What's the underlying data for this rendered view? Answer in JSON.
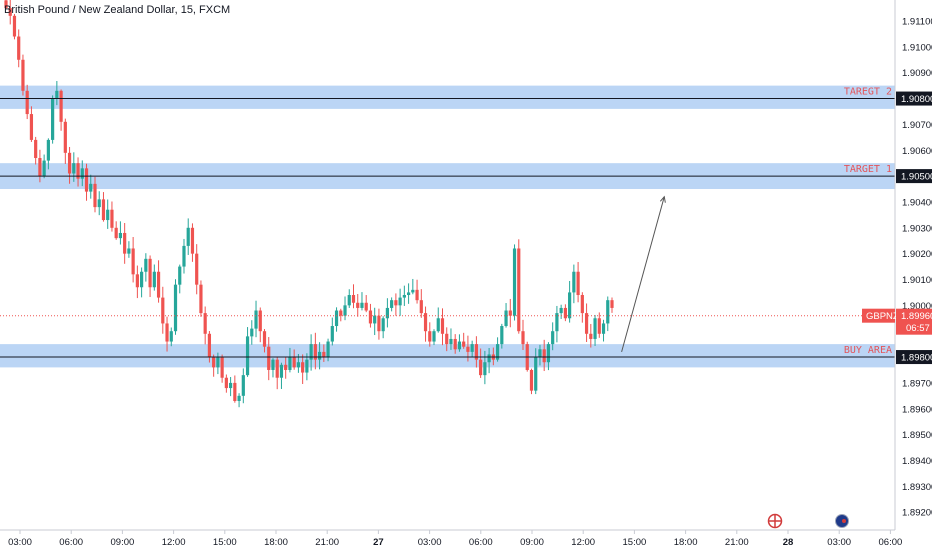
{
  "header": {
    "title": "British Pound / New Zealand Dollar, 15, FXCM"
  },
  "price_tag": {
    "symbol": "GBPNZD",
    "price": "1.89960",
    "countdown": "06:57"
  },
  "colors": {
    "up": "#26a69a",
    "down": "#ef5350",
    "zone": "#bbd5f5",
    "level_line": "#131722",
    "current_price": "#ef5350",
    "zone_text": "#e4555a",
    "arrow": "#555555"
  },
  "chart_data": {
    "type": "candlestick",
    "title": "British Pound / New Zealand Dollar, 15, FXCM",
    "ylim": [
      1.8912,
      1.9118
    ],
    "y_ticks": [
      "1.91100",
      "1.91000",
      "1.90900",
      "1.90800",
      "1.90700",
      "1.90600",
      "1.90500",
      "1.90400",
      "1.90300",
      "1.90200",
      "1.90100",
      "1.90000",
      "1.89900",
      "1.89800",
      "1.89700",
      "1.89600",
      "1.89500",
      "1.89400",
      "1.89300",
      "1.89200"
    ],
    "x_ticks": [
      "03:00",
      "06:00",
      "09:00",
      "12:00",
      "15:00",
      "18:00",
      "21:00",
      "27",
      "03:00",
      "06:00",
      "09:00",
      "12:00",
      "15:00",
      "18:00",
      "21:00",
      "28",
      "03:00",
      "06:00"
    ],
    "levels": [
      {
        "label": "TAREGT 2",
        "price": 1.908,
        "tag": "1.90800",
        "zone": [
          1.9076,
          1.9085
        ]
      },
      {
        "label": "TARGET 1",
        "price": 1.905,
        "tag": "1.90500",
        "zone": [
          1.9045,
          1.9055
        ]
      },
      {
        "label": "BUY AREA",
        "price": 1.898,
        "tag": "1.89800",
        "zone": [
          1.8976,
          1.8985
        ]
      }
    ],
    "current_price": 1.8996,
    "projection_arrow": {
      "from_time": "14:15",
      "from_price": 1.8982,
      "to_time": "16:45",
      "to_price": 1.9042
    },
    "candle_close_path": [
      1.9115,
      1.9112,
      1.9104,
      1.9095,
      1.9083,
      1.9074,
      1.9064,
      1.9057,
      1.905,
      1.9056,
      1.9064,
      1.908,
      1.9083,
      1.9071,
      1.9059,
      1.9051,
      1.9055,
      1.9049,
      1.9053,
      1.9044,
      1.9047,
      1.9038,
      1.9041,
      1.9033,
      1.9037,
      1.903,
      1.9026,
      1.9028,
      1.902,
      1.9022,
      1.9012,
      1.9007,
      1.9013,
      1.9018,
      1.9007,
      1.9013,
      1.9003,
      1.8993,
      1.8986,
      1.899,
      1.9008,
      1.9015,
      1.9023,
      1.903,
      1.902,
      1.9008,
      1.8997,
      1.8989,
      1.898,
      1.8976,
      1.898,
      1.8972,
      1.8968,
      1.897,
      1.8963,
      1.8965,
      1.8973,
      1.8988,
      1.8991,
      1.8998,
      1.899,
      1.8984,
      1.8975,
      1.8979,
      1.8972,
      1.8977,
      1.8975,
      1.898,
      1.8976,
      1.8978,
      1.8974,
      1.8979,
      1.8985,
      1.8979,
      1.8982,
      1.898,
      1.8986,
      1.8992,
      1.8998,
      1.8996,
      1.9,
      1.9004,
      1.9001,
      1.8999,
      1.9001,
      1.8998,
      1.8993,
      1.8996,
      1.899,
      1.8995,
      1.8999,
      1.9002,
      1.9,
      1.9003,
      1.9004,
      1.9005,
      1.9006,
      1.9002,
      1.8997,
      1.899,
      1.8986,
      1.899,
      1.8995,
      1.8989,
      1.8985,
      1.8987,
      1.8983,
      1.8986,
      1.8984,
      1.8982,
      1.8985,
      1.8979,
      1.8973,
      1.8978,
      1.8981,
      1.8979,
      1.8985,
      1.8992,
      1.8998,
      1.8996,
      1.9022,
      1.899,
      1.8985,
      1.8975,
      1.8967,
      1.898,
      1.8983,
      1.8978,
      1.8985,
      1.899,
      1.8997,
      1.8999,
      1.8995,
      1.9005,
      1.9013,
      1.9004,
      1.8997,
      1.8989,
      1.8987,
      1.8995,
      1.8989,
      1.8993,
      1.9002,
      1.8999
    ]
  }
}
